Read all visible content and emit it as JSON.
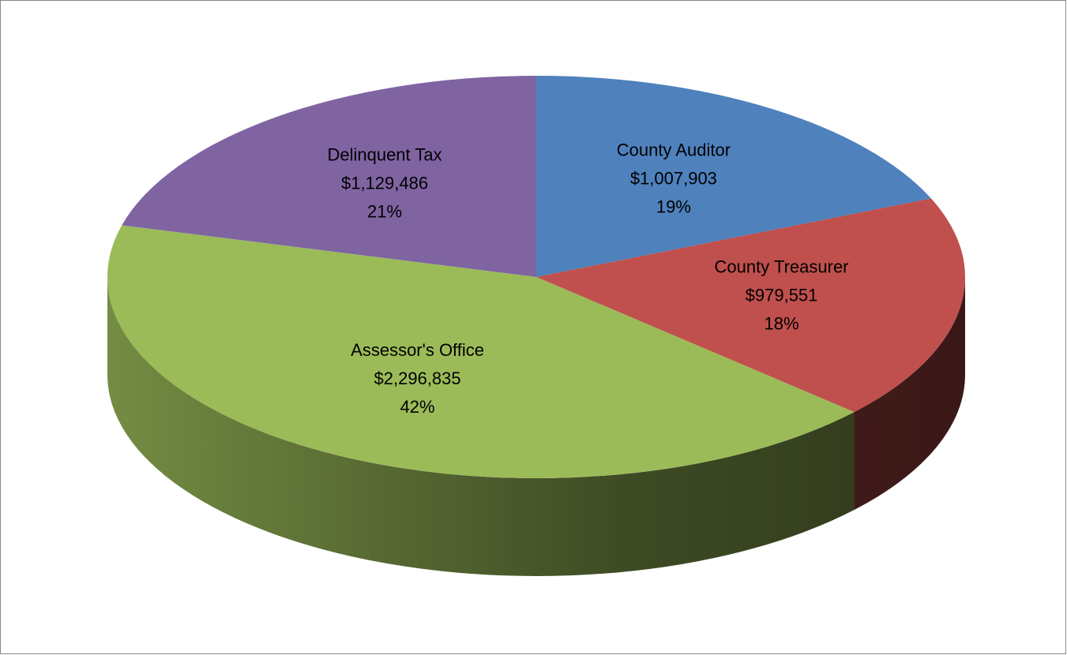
{
  "chart_data": {
    "type": "pie",
    "categories": [
      "County Auditor",
      "County Treasurer",
      "Assessor's Office",
      "Delinquent Tax"
    ],
    "values": [
      1007903,
      979551,
      2296835,
      1129486
    ],
    "value_labels": [
      "$1,007,903",
      "$979,551",
      "$2,296,835",
      "$1,129,486"
    ],
    "percent_labels": [
      "19%",
      "18%",
      "42%",
      "21%"
    ],
    "colors": [
      "#4f81bd",
      "#c0504d",
      "#9bbb59",
      "#8064a2"
    ]
  }
}
